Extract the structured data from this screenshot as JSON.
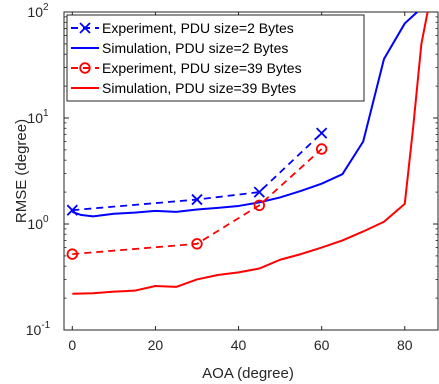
{
  "chart_data": {
    "type": "line",
    "title": "",
    "xlabel": "AOA (degree)",
    "ylabel": "RMSE (degree)",
    "xlim": [
      -2,
      88
    ],
    "ylim": [
      0.1,
      100
    ],
    "yscale": "log",
    "grid": false,
    "legend_position": "top-left",
    "x_ticks": [
      0,
      20,
      40,
      60,
      80
    ],
    "y_ticks": [
      {
        "value": 0.1,
        "base": "10",
        "exp": "-1"
      },
      {
        "value": 1,
        "base": "10",
        "exp": "0"
      },
      {
        "value": 10,
        "base": "10",
        "exp": "1"
      },
      {
        "value": 100,
        "base": "10",
        "exp": "2"
      }
    ],
    "series": [
      {
        "name": "Experiment, PDU size=2 Bytes",
        "color": "#0000ff",
        "line": "dashed",
        "marker": "x",
        "points": [
          [
            0,
            1.35
          ],
          [
            30,
            1.7
          ],
          [
            45,
            2.0
          ],
          [
            60,
            7.2
          ]
        ]
      },
      {
        "name": "Simulation, PDU size=2 Bytes",
        "color": "#0000ff",
        "line": "solid",
        "marker": "none",
        "points": [
          [
            0,
            1.3
          ],
          [
            2,
            1.22
          ],
          [
            5,
            1.18
          ],
          [
            10,
            1.25
          ],
          [
            15,
            1.28
          ],
          [
            20,
            1.33
          ],
          [
            25,
            1.3
          ],
          [
            30,
            1.37
          ],
          [
            35,
            1.42
          ],
          [
            40,
            1.48
          ],
          [
            45,
            1.6
          ],
          [
            50,
            1.78
          ],
          [
            55,
            2.05
          ],
          [
            60,
            2.4
          ],
          [
            65,
            2.95
          ],
          [
            70,
            6.0
          ],
          [
            75,
            36
          ],
          [
            80,
            78
          ],
          [
            83,
            100
          ]
        ]
      },
      {
        "name": "Experiment, PDU size=39 Bytes",
        "color": "#ff0000",
        "line": "dashed",
        "marker": "o",
        "points": [
          [
            0,
            0.52
          ],
          [
            30,
            0.65
          ],
          [
            45,
            1.5
          ],
          [
            60,
            5.1
          ]
        ]
      },
      {
        "name": "Simulation, PDU size=39 Bytes",
        "color": "#ff0000",
        "line": "solid",
        "marker": "none",
        "points": [
          [
            0,
            0.22
          ],
          [
            5,
            0.222
          ],
          [
            10,
            0.23
          ],
          [
            15,
            0.235
          ],
          [
            20,
            0.26
          ],
          [
            25,
            0.255
          ],
          [
            30,
            0.3
          ],
          [
            35,
            0.33
          ],
          [
            40,
            0.35
          ],
          [
            45,
            0.38
          ],
          [
            50,
            0.46
          ],
          [
            55,
            0.52
          ],
          [
            60,
            0.6
          ],
          [
            65,
            0.7
          ],
          [
            70,
            0.85
          ],
          [
            75,
            1.05
          ],
          [
            80,
            1.55
          ],
          [
            82,
            8
          ],
          [
            84,
            50
          ],
          [
            85.5,
            100
          ]
        ]
      }
    ]
  }
}
